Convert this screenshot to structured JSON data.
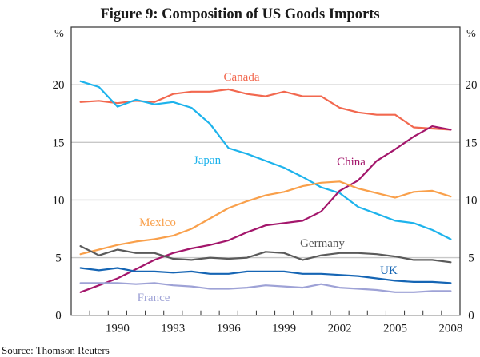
{
  "chart_data": {
    "type": "line",
    "title": "Figure 9: Composition of US Goods Imports",
    "ylabel_left": "%",
    "ylabel_right": "%",
    "xlabel": "",
    "ylim": [
      0,
      25
    ],
    "yticks": [
      0,
      5,
      10,
      15,
      20
    ],
    "x": [
      1988,
      1989,
      1990,
      1991,
      1992,
      1993,
      1994,
      1995,
      1996,
      1997,
      1998,
      1999,
      2000,
      2001,
      2002,
      2003,
      2004,
      2005,
      2006,
      2007,
      2008
    ],
    "xtick_labels": [
      "1990",
      "1993",
      "1996",
      "1999",
      "2002",
      "2005",
      "2008"
    ],
    "xtick_years": [
      1990,
      1993,
      1996,
      1999,
      2002,
      2005,
      2008
    ],
    "grid": true,
    "legend": "inline-labels",
    "source": "Source:  Thomson Reuters",
    "series": [
      {
        "name": "Canada",
        "color": "#f2684f",
        "values": [
          18.5,
          18.6,
          18.4,
          18.6,
          18.5,
          19.2,
          19.4,
          19.4,
          19.6,
          19.2,
          19.0,
          19.4,
          19.0,
          19.0,
          18.0,
          17.6,
          17.4,
          17.4,
          16.3,
          16.2,
          16.1
        ]
      },
      {
        "name": "Japan",
        "color": "#1db3ec",
        "values": [
          20.3,
          19.8,
          18.1,
          18.7,
          18.3,
          18.5,
          18.0,
          16.6,
          14.5,
          14.0,
          13.4,
          12.8,
          12.0,
          11.1,
          10.6,
          9.4,
          8.8,
          8.2,
          8.0,
          7.4,
          6.6
        ]
      },
      {
        "name": "China",
        "color": "#a3166b",
        "values": [
          2.0,
          2.6,
          3.2,
          4.0,
          4.8,
          5.4,
          5.8,
          6.1,
          6.5,
          7.2,
          7.8,
          8.0,
          8.2,
          9.0,
          10.8,
          11.7,
          13.4,
          14.4,
          15.5,
          16.4,
          16.1
        ]
      },
      {
        "name": "Mexico",
        "color": "#f9a04b",
        "values": [
          5.3,
          5.7,
          6.1,
          6.4,
          6.6,
          6.9,
          7.5,
          8.4,
          9.3,
          9.9,
          10.4,
          10.7,
          11.2,
          11.5,
          11.6,
          11.0,
          10.6,
          10.2,
          10.7,
          10.8,
          10.3
        ]
      },
      {
        "name": "Germany",
        "color": "#5a5a5a",
        "values": [
          6.0,
          5.2,
          5.7,
          5.4,
          5.4,
          4.9,
          4.8,
          5.0,
          4.9,
          5.0,
          5.5,
          5.4,
          4.8,
          5.2,
          5.4,
          5.4,
          5.3,
          5.1,
          4.8,
          4.8,
          4.6
        ]
      },
      {
        "name": "UK",
        "color": "#1565b4",
        "values": [
          4.1,
          3.9,
          4.1,
          3.8,
          3.8,
          3.7,
          3.8,
          3.6,
          3.6,
          3.8,
          3.8,
          3.8,
          3.6,
          3.6,
          3.5,
          3.4,
          3.2,
          3.0,
          2.9,
          2.9,
          2.8
        ]
      },
      {
        "name": "France",
        "color": "#9ea2d6",
        "values": [
          2.8,
          2.8,
          2.8,
          2.7,
          2.8,
          2.6,
          2.5,
          2.3,
          2.3,
          2.4,
          2.6,
          2.5,
          2.4,
          2.7,
          2.4,
          2.3,
          2.2,
          2.0,
          2.0,
          2.1,
          2.1
        ]
      }
    ]
  }
}
